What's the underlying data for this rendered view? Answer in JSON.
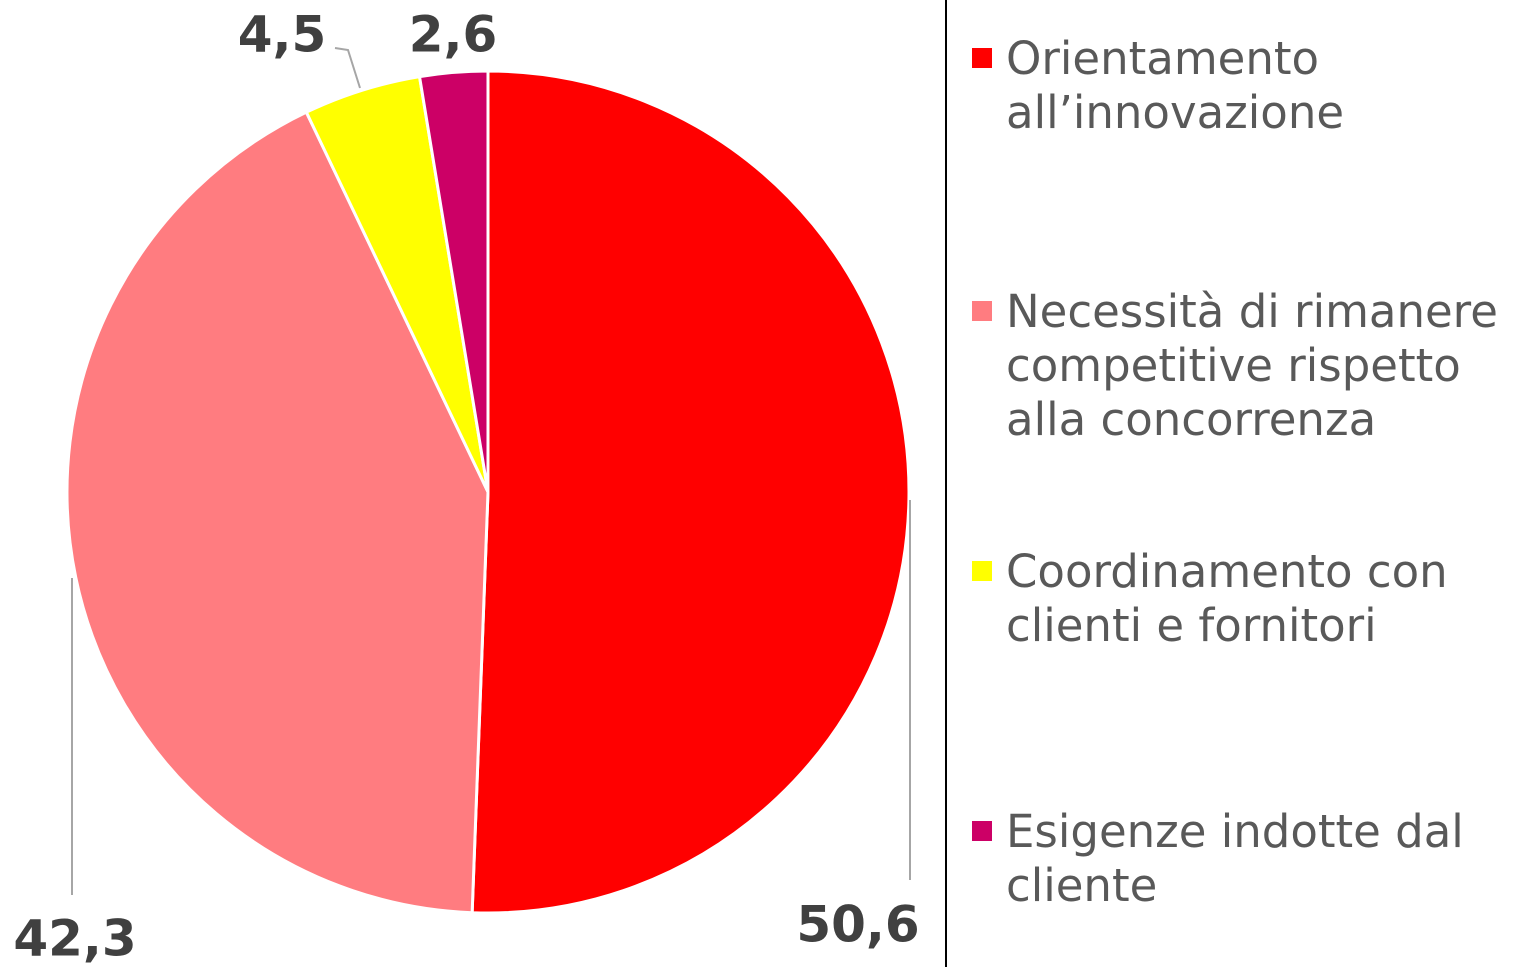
{
  "chart_data": {
    "type": "pie",
    "categories": [
      "Orientamento all’innovazione",
      "Necessità di rimanere competitive rispetto alla concorrenza",
      "Coordinamento con clienti e fornitori",
      "Esigenze indotte dal cliente"
    ],
    "values": [
      50.6,
      42.3,
      4.5,
      2.6
    ],
    "value_labels": [
      "50,6",
      "42,3",
      "4,5",
      "2,6"
    ],
    "colors": [
      "#ff0000",
      "#ff7c80",
      "#ffff00",
      "#cc0066"
    ],
    "legend": "right"
  }
}
